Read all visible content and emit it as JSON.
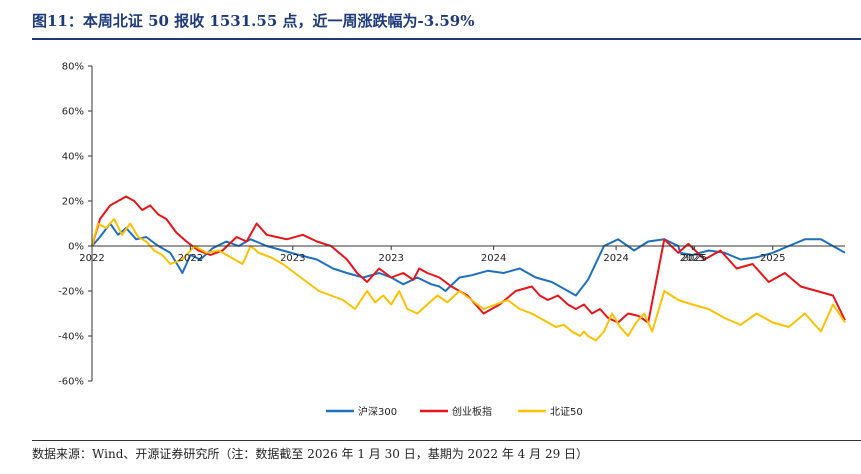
{
  "figure": {
    "title": "图11：本周北证 50 报收 1531.55 点，近一周涨跌幅为-3.59%",
    "source": "数据来源：Wind、开源证券研究所（注：数据截至 2026 年 1 月 30 日，基期为 2022 年 4 月 29 日）"
  },
  "chart_data": {
    "type": "line",
    "title": "",
    "xlabel": "",
    "ylabel": "",
    "x_range": [
      2022.33,
      2026.08
    ],
    "ylim": [
      -60,
      80
    ],
    "yticks": [
      80,
      60,
      40,
      20,
      0,
      -20,
      -40,
      -60
    ],
    "ytick_labels": [
      "80%",
      "60%",
      "40%",
      "20%",
      "0%",
      "-20%",
      "-40%",
      "-60%"
    ],
    "xtick_labels": [
      "2022",
      "2023",
      "2024",
      "2024",
      "2025",
      "2025",
      "2022",
      "2023",
      "2025"
    ],
    "grid": false,
    "legend_position": "bottom-center",
    "series": [
      {
        "name": "沪深300",
        "color": "#1f6fbf",
        "x": [
          2022.33,
          2022.37,
          2022.42,
          2022.46,
          2022.5,
          2022.55,
          2022.6,
          2022.66,
          2022.72,
          2022.78,
          2022.82,
          2022.87,
          2022.93,
          2023.0,
          2023.06,
          2023.12,
          2023.2,
          2023.28,
          2023.36,
          2023.45,
          2023.53,
          2023.6,
          2023.68,
          2023.76,
          2023.82,
          2023.88,
          2023.95,
          2024.02,
          2024.06,
          2024.09,
          2024.16,
          2024.22,
          2024.3,
          2024.38,
          2024.46,
          2024.54,
          2024.62,
          2024.66,
          2024.7,
          2024.74,
          2024.8,
          2024.88,
          2024.95,
          2025.03,
          2025.1,
          2025.18,
          2025.25,
          2025.26,
          2025.32,
          2025.4,
          2025.48,
          2025.56,
          2025.64,
          2025.72,
          2025.8,
          2025.88,
          2025.96,
          2026.04,
          2026.08
        ],
        "y": [
          0,
          4,
          10,
          5,
          8,
          3,
          4,
          0,
          -3,
          -12,
          -4,
          -6,
          -1,
          2,
          0,
          3,
          0,
          -2,
          -4,
          -6,
          -10,
          -12,
          -14,
          -12,
          -14,
          -17,
          -14,
          -17,
          -18,
          -20,
          -14,
          -13,
          -11,
          -12,
          -10,
          -14,
          -16,
          -18,
          -20,
          -22,
          -15,
          0,
          3,
          -2,
          2,
          3,
          0,
          -3,
          -4,
          -2,
          -3,
          -6,
          -5,
          -3,
          0,
          3,
          3,
          -1,
          -3
        ]
      },
      {
        "name": "创业板指",
        "color": "#e8141b",
        "x": [
          2022.33,
          2022.37,
          2022.42,
          2022.46,
          2022.5,
          2022.54,
          2022.58,
          2022.62,
          2022.66,
          2022.7,
          2022.75,
          2022.8,
          2022.86,
          2022.92,
          2022.98,
          2023.05,
          2023.1,
          2023.15,
          2023.2,
          2023.25,
          2023.3,
          2023.38,
          2023.45,
          2023.52,
          2023.6,
          2023.65,
          2023.7,
          2023.76,
          2023.82,
          2023.88,
          2023.93,
          2023.96,
          2024.0,
          2024.06,
          2024.12,
          2024.2,
          2024.28,
          2024.36,
          2024.44,
          2024.52,
          2024.56,
          2024.6,
          2024.65,
          2024.7,
          2024.74,
          2024.78,
          2024.82,
          2024.86,
          2024.9,
          2024.95,
          2025.0,
          2025.05,
          2025.1,
          2025.18,
          2025.25,
          2025.3,
          2025.38,
          2025.46,
          2025.54,
          2025.62,
          2025.7,
          2025.78,
          2025.86,
          2025.94,
          2026.02,
          2026.08
        ],
        "y": [
          0,
          12,
          18,
          20,
          22,
          20,
          16,
          18,
          14,
          12,
          6,
          2,
          -2,
          -4,
          -2,
          4,
          2,
          10,
          5,
          4,
          3,
          5,
          2,
          0,
          -6,
          -12,
          -16,
          -10,
          -14,
          -12,
          -15,
          -10,
          -12,
          -14,
          -18,
          -22,
          -30,
          -26,
          -20,
          -18,
          -22,
          -24,
          -22,
          -26,
          -28,
          -26,
          -30,
          -28,
          -32,
          -34,
          -30,
          -31,
          -34,
          3,
          -3,
          1,
          -6,
          -2,
          -10,
          -8,
          -16,
          -12,
          -18,
          -20,
          -22,
          -33
        ]
      },
      {
        "name": "北证50",
        "color": "#ffc000",
        "x": [
          2022.33,
          2022.36,
          2022.4,
          2022.44,
          2022.48,
          2022.52,
          2022.56,
          2022.6,
          2022.64,
          2022.68,
          2022.72,
          2022.78,
          2022.84,
          2022.9,
          2022.96,
          2023.02,
          2023.08,
          2023.12,
          2023.16,
          2023.22,
          2023.28,
          2023.34,
          2023.4,
          2023.46,
          2023.52,
          2023.58,
          2023.64,
          2023.7,
          2023.74,
          2023.78,
          2023.82,
          2023.86,
          2023.9,
          2023.95,
          2024.0,
          2024.05,
          2024.1,
          2024.16,
          2024.22,
          2024.28,
          2024.34,
          2024.4,
          2024.46,
          2024.52,
          2024.56,
          2024.6,
          2024.64,
          2024.68,
          2024.72,
          2024.76,
          2024.78,
          2024.8,
          2024.84,
          2024.88,
          2024.92,
          2024.96,
          2025.0,
          2025.04,
          2025.08,
          2025.12,
          2025.18,
          2025.25,
          2025.32,
          2025.4,
          2025.48,
          2025.56,
          2025.64,
          2025.72,
          2025.8,
          2025.88,
          2025.96,
          2026.02,
          2026.08
        ],
        "y": [
          0,
          10,
          8,
          12,
          5,
          10,
          4,
          2,
          -2,
          -4,
          -8,
          -6,
          0,
          -3,
          -2,
          -5,
          -8,
          0,
          -3,
          -5,
          -8,
          -12,
          -16,
          -20,
          -22,
          -24,
          -28,
          -20,
          -25,
          -22,
          -26,
          -20,
          -28,
          -30,
          -26,
          -22,
          -25,
          -20,
          -24,
          -28,
          -26,
          -24,
          -28,
          -30,
          -32,
          -34,
          -36,
          -35,
          -38,
          -40,
          -38,
          -40,
          -42,
          -38,
          -30,
          -36,
          -40,
          -34,
          -30,
          -38,
          -20,
          -24,
          -26,
          -28,
          -32,
          -35,
          -30,
          -34,
          -36,
          -30,
          -38,
          -26,
          -34
        ]
      }
    ]
  },
  "legend": {
    "items": [
      {
        "label": "沪深300",
        "color": "#1f6fbf"
      },
      {
        "label": "创业板指",
        "color": "#e8141b"
      },
      {
        "label": "北证50",
        "color": "#ffc000"
      }
    ]
  }
}
